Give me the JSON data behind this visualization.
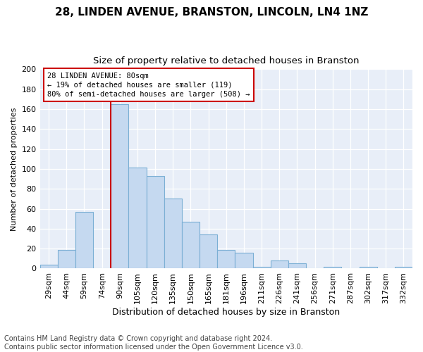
{
  "title1": "28, LINDEN AVENUE, BRANSTON, LINCOLN, LN4 1NZ",
  "title2": "Size of property relative to detached houses in Branston",
  "xlabel": "Distribution of detached houses by size in Branston",
  "ylabel": "Number of detached properties",
  "bar_labels": [
    "29sqm",
    "44sqm",
    "59sqm",
    "74sqm",
    "90sqm",
    "105sqm",
    "120sqm",
    "135sqm",
    "150sqm",
    "165sqm",
    "181sqm",
    "196sqm",
    "211sqm",
    "226sqm",
    "241sqm",
    "256sqm",
    "271sqm",
    "287sqm",
    "302sqm",
    "317sqm",
    "332sqm"
  ],
  "bar_values": [
    4,
    19,
    57,
    0,
    165,
    101,
    93,
    70,
    47,
    34,
    19,
    16,
    2,
    8,
    5,
    0,
    2,
    0,
    2,
    0,
    2
  ],
  "bar_color": "#c5d9f0",
  "bar_edge_color": "#7bafd4",
  "vline_x_label": "74sqm",
  "vline_color": "#cc0000",
  "annotation_text": "28 LINDEN AVENUE: 80sqm\n← 19% of detached houses are smaller (119)\n80% of semi-detached houses are larger (508) →",
  "annotation_box_color": "#ffffff",
  "annotation_box_edge": "#cc0000",
  "ylim": [
    0,
    200
  ],
  "yticks": [
    0,
    20,
    40,
    60,
    80,
    100,
    120,
    140,
    160,
    180,
    200
  ],
  "footer_text": "Contains HM Land Registry data © Crown copyright and database right 2024.\nContains public sector information licensed under the Open Government Licence v3.0.",
  "fig_facecolor": "#ffffff",
  "axes_facecolor": "#e8eef8",
  "grid_color": "#ffffff",
  "title1_fontsize": 11,
  "title2_fontsize": 9.5,
  "xlabel_fontsize": 9,
  "ylabel_fontsize": 8,
  "tick_fontsize": 8,
  "annotation_fontsize": 7.5,
  "footer_fontsize": 7
}
